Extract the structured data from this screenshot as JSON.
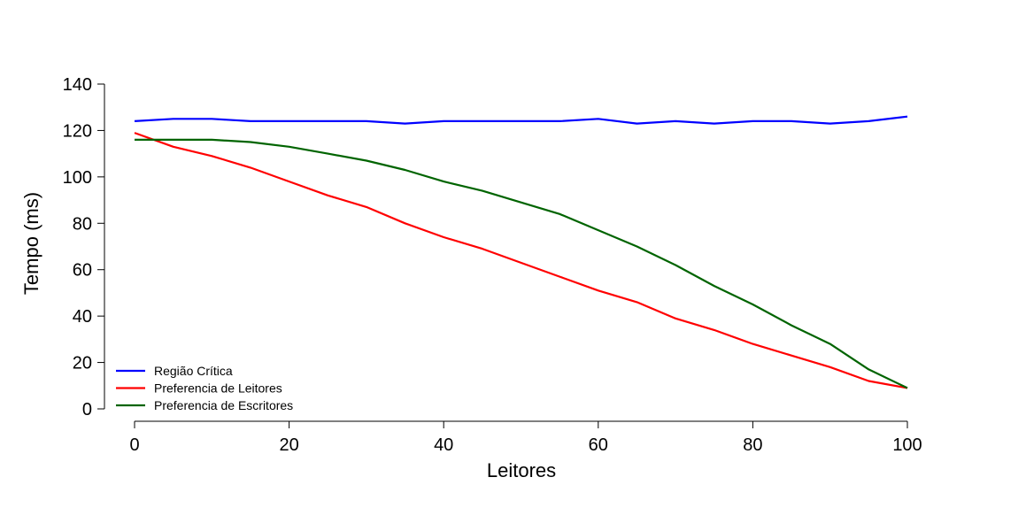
{
  "chart_data": {
    "type": "line",
    "title": "",
    "xlabel": "Leitores",
    "ylabel": "Tempo (ms)",
    "xlim": [
      0,
      100
    ],
    "ylim": [
      0,
      140
    ],
    "xticks": [
      0,
      20,
      40,
      60,
      80,
      100
    ],
    "yticks": [
      0,
      20,
      40,
      60,
      80,
      100,
      120,
      140
    ],
    "grid": false,
    "legend_position": "bottom-left",
    "x": [
      0,
      5,
      10,
      15,
      20,
      25,
      30,
      35,
      40,
      45,
      50,
      55,
      60,
      65,
      70,
      75,
      80,
      85,
      90,
      95,
      100
    ],
    "series": [
      {
        "name": "Região Crítica",
        "color": "#0000ff",
        "values": [
          124,
          125,
          125,
          124,
          124,
          124,
          124,
          123,
          124,
          124,
          124,
          124,
          125,
          123,
          124,
          123,
          124,
          124,
          123,
          124,
          126
        ]
      },
      {
        "name": "Preferencia de Leitores",
        "color": "#ff0000",
        "values": [
          119,
          113,
          109,
          104,
          98,
          92,
          87,
          80,
          74,
          69,
          63,
          57,
          51,
          46,
          39,
          34,
          28,
          23,
          18,
          12,
          9
        ]
      },
      {
        "name": "Preferencia de Escritores",
        "color": "#006400",
        "values": [
          116,
          116,
          116,
          115,
          113,
          110,
          107,
          103,
          98,
          94,
          89,
          84,
          77,
          70,
          62,
          53,
          45,
          36,
          28,
          17,
          9
        ]
      }
    ]
  }
}
